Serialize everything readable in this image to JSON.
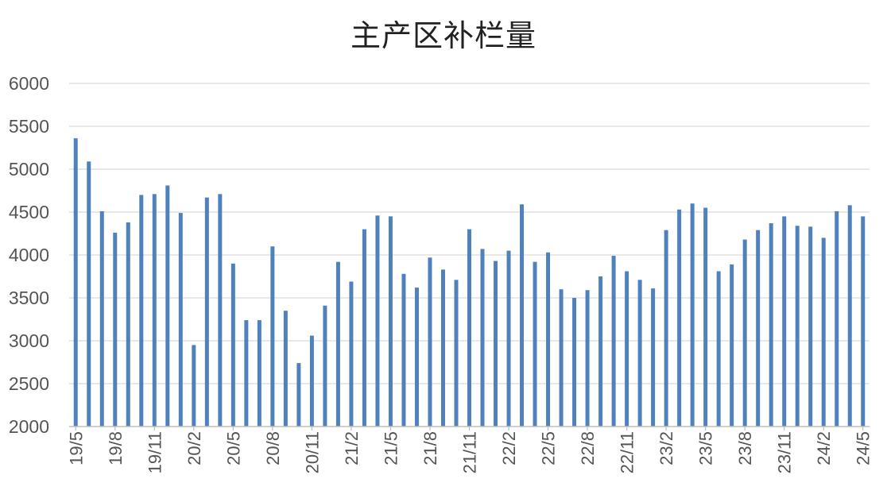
{
  "chart_data": {
    "type": "bar",
    "title": "主产区补栏量",
    "xlabel": "",
    "ylabel": "",
    "ylim": [
      2000,
      6000
    ],
    "yticks": [
      "2000",
      "2500",
      "3000",
      "3500",
      "4000",
      "4500",
      "5000",
      "5500",
      "6000"
    ],
    "grid": true,
    "legend": "none",
    "bar_color": "#4f81bd",
    "categories": [
      "19/5",
      "19/6",
      "19/7",
      "19/8",
      "19/9",
      "19/10",
      "19/11",
      "19/12",
      "20/1",
      "20/2",
      "20/3",
      "20/4",
      "20/5",
      "20/6",
      "20/7",
      "20/8",
      "20/9",
      "20/10",
      "20/11",
      "20/12",
      "21/1",
      "21/2",
      "21/3",
      "21/4",
      "21/5",
      "21/6",
      "21/7",
      "21/8",
      "21/9",
      "21/10",
      "21/11",
      "21/12",
      "22/1",
      "22/2",
      "22/3",
      "22/4",
      "22/5",
      "22/6",
      "22/7",
      "22/8",
      "22/9",
      "22/10",
      "22/11",
      "22/12",
      "23/1",
      "23/2",
      "23/3",
      "23/4",
      "23/5",
      "23/6",
      "23/7",
      "23/8",
      "23/9",
      "23/10",
      "23/11",
      "23/12",
      "24/1",
      "24/2",
      "24/3",
      "24/4",
      "24/5"
    ],
    "xtick_labels": [
      "19/5",
      "19/8",
      "19/11",
      "20/2",
      "20/5",
      "20/8",
      "20/11",
      "21/2",
      "21/5",
      "21/8",
      "21/11",
      "22/2",
      "22/5",
      "22/8",
      "22/11",
      "23/2",
      "23/5",
      "23/8",
      "23/11",
      "24/2",
      "24/5"
    ],
    "values": [
      5360,
      5090,
      4510,
      4260,
      4380,
      4700,
      4710,
      4810,
      4490,
      2950,
      4670,
      4710,
      3900,
      3240,
      3240,
      4100,
      3350,
      2740,
      3060,
      3410,
      3920,
      3690,
      4300,
      4460,
      4450,
      3780,
      3620,
      3970,
      3830,
      3710,
      4300,
      4070,
      3930,
      4050,
      4590,
      3920,
      4030,
      3600,
      3500,
      3590,
      3750,
      3990,
      3810,
      3710,
      3610,
      4290,
      4530,
      4600,
      4550,
      3810,
      3890,
      4180,
      4290,
      4370,
      4450,
      4340,
      4330,
      4200,
      4510,
      4580,
      4450
    ]
  }
}
